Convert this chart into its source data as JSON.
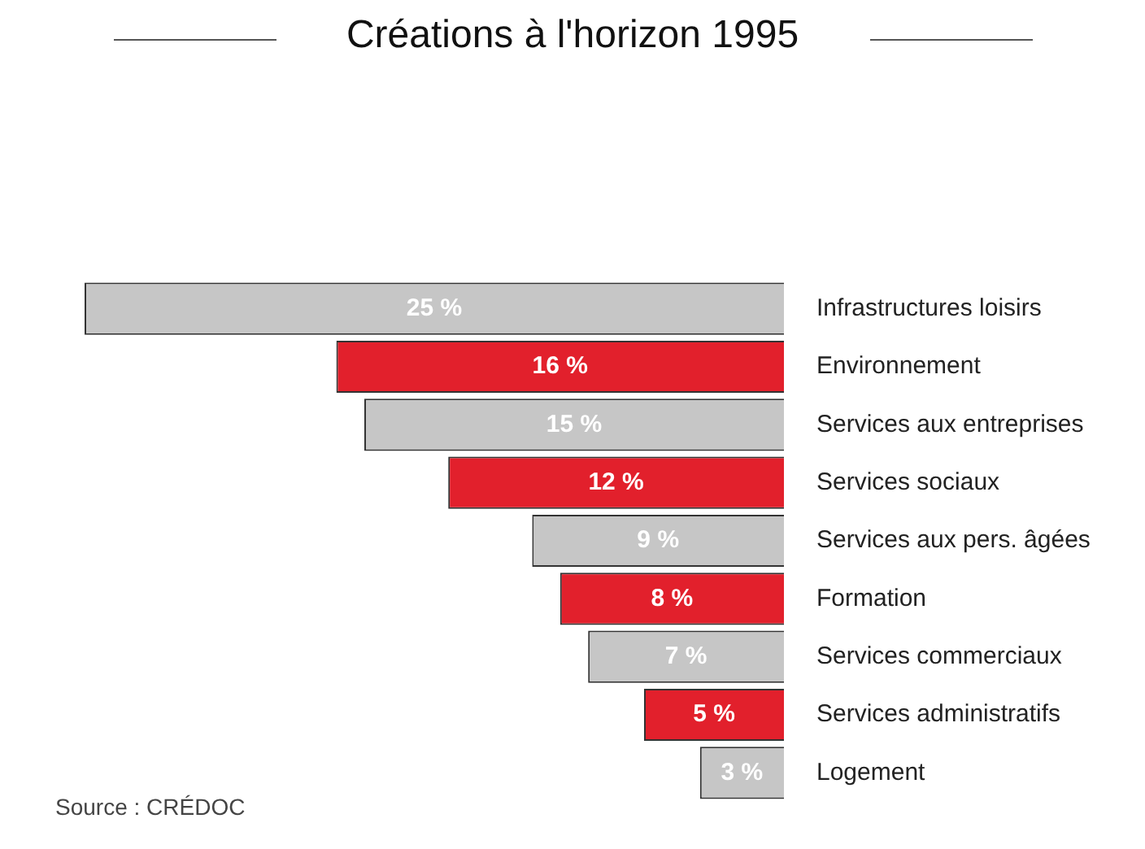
{
  "chart_data": {
    "type": "bar",
    "orientation": "horizontal",
    "title": "Créations à l'horizon 1995",
    "categories": [
      "Infrastructures loisirs",
      "Environnement",
      "Services aux entreprises",
      "Services sociaux",
      "Services aux pers. âgées",
      "Formation",
      "Services commerciaux",
      "Services administratifs",
      "Logement"
    ],
    "values": [
      25,
      16,
      15,
      12,
      9,
      8,
      7,
      5,
      3
    ],
    "colors": [
      "#c6c6c6",
      "#e2202c",
      "#c6c6c6",
      "#e2202c",
      "#c6c6c6",
      "#e2202c",
      "#c6c6c6",
      "#e2202c",
      "#c6c6c6"
    ],
    "value_labels": [
      "25 %",
      "16 %",
      "15 %",
      "12 %",
      "9 %",
      "8 %",
      "7 %",
      "5 %",
      "3 %"
    ],
    "xlim": [
      25,
      0
    ],
    "tick_labels": "y",
    "legend": false,
    "annotations": [
      "Source : CRÉDOC"
    ]
  }
}
